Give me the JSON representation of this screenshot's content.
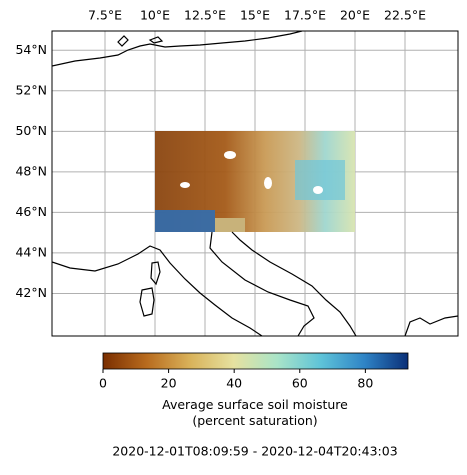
{
  "map": {
    "lonlim": [
      4.85,
      25.15
    ],
    "latlim": [
      39.9,
      54.95
    ],
    "lonticks": [
      {
        "value": 7.5,
        "label": "7.5°E"
      },
      {
        "value": 10,
        "label": "10°E"
      },
      {
        "value": 12.5,
        "label": "12.5°E"
      },
      {
        "value": 15,
        "label": "15°E"
      },
      {
        "value": 17.5,
        "label": "17.5°E"
      },
      {
        "value": 20,
        "label": "20°E"
      },
      {
        "value": 22.5,
        "label": "22.5°E"
      }
    ],
    "latticks": [
      {
        "value": 42,
        "label": "42°N"
      },
      {
        "value": 44,
        "label": "44°N"
      },
      {
        "value": 46,
        "label": "46°N"
      },
      {
        "value": 48,
        "label": "48°N"
      },
      {
        "value": 50,
        "label": "50°N"
      },
      {
        "value": 52,
        "label": "52°N"
      },
      {
        "value": 54,
        "label": "54°N"
      }
    ],
    "grid": true,
    "colorbar": {
      "lim": [
        0,
        93
      ],
      "ticks": [
        0,
        20,
        40,
        60,
        80
      ],
      "colors": [
        "#7a2e00",
        "#b86b1e",
        "#d9b25a",
        "#e6e2a0",
        "#a9e4c8",
        "#5ec3d8",
        "#2f84c6",
        "#0a2f78"
      ],
      "label": "Average surface soil moisture\n(percent saturation)"
    },
    "time_range": "2020-12-01T08:09:59 - 2020-12-04T20:43:03"
  }
}
